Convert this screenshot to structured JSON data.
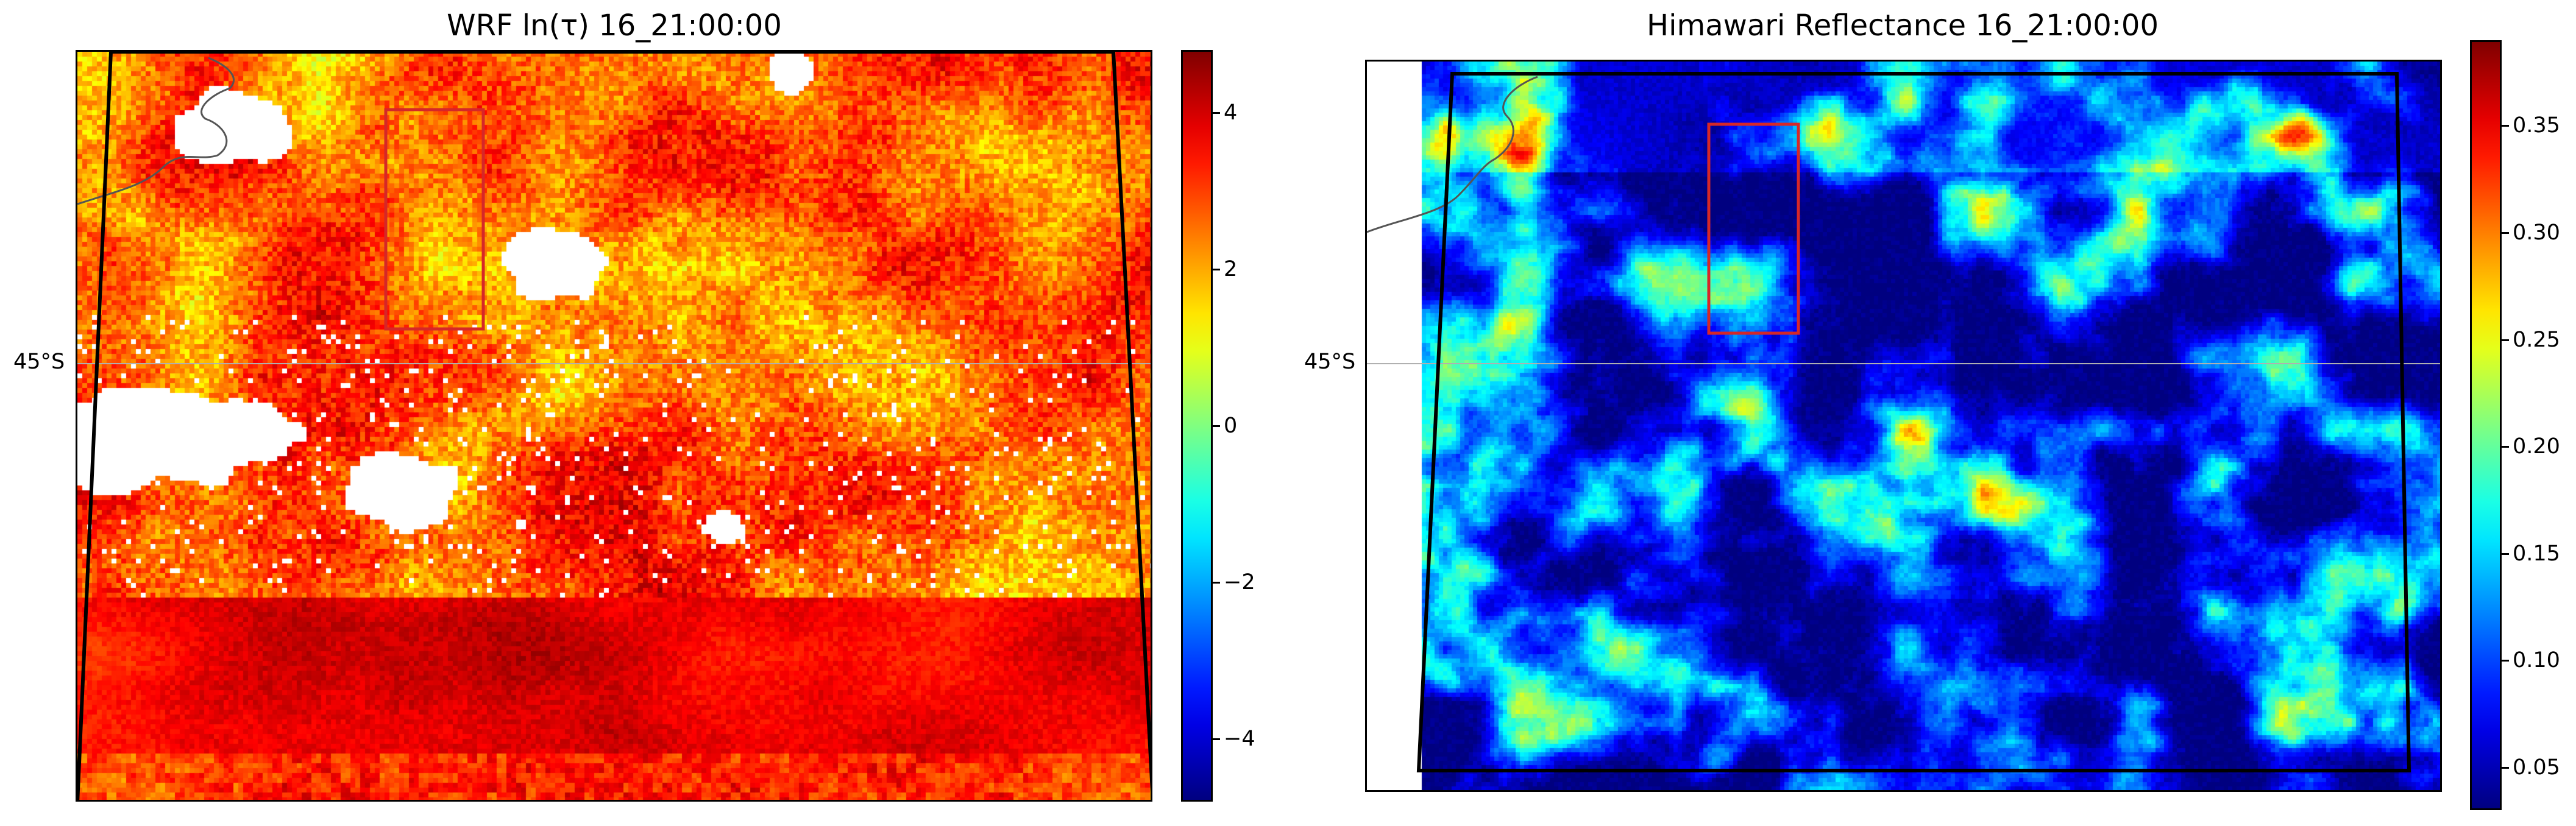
{
  "panels": [
    {
      "title": "WRF ln(τ) 16_21:00:00",
      "lat_label": "45°S",
      "colorbar": {
        "colormap": "jet",
        "range": [
          -4.8,
          4.8
        ],
        "tick_labels": [
          "4",
          "2",
          "0",
          "−2",
          "−4"
        ],
        "tick_values": [
          4,
          2,
          0,
          -2,
          -4
        ]
      },
      "region_box_color": "#d62728",
      "domain_outline_color": "#000000",
      "coastline_color": "#555555",
      "gridline_color": "#b0b0b0",
      "field_description": "dense ln(tau) field, mostly 1 to 4, with white clear-sky patches"
    },
    {
      "title": "Himawari Reflectance 16_21:00:00",
      "lat_label": "45°S",
      "colorbar": {
        "colormap": "jet",
        "range": [
          0.03,
          0.39
        ],
        "tick_labels": [
          "0.35",
          "0.30",
          "0.25",
          "0.20",
          "0.15",
          "0.10",
          "0.05"
        ],
        "tick_values": [
          0.35,
          0.3,
          0.25,
          0.2,
          0.15,
          0.1,
          0.05
        ]
      },
      "region_box_color": "#d62728",
      "domain_outline_color": "#000000",
      "coastline_color": "#555555",
      "gridline_color": "#b0b0b0",
      "field_description": "patchy reflectance, low (blue) background with high (orange/red) cloud cells"
    }
  ]
}
